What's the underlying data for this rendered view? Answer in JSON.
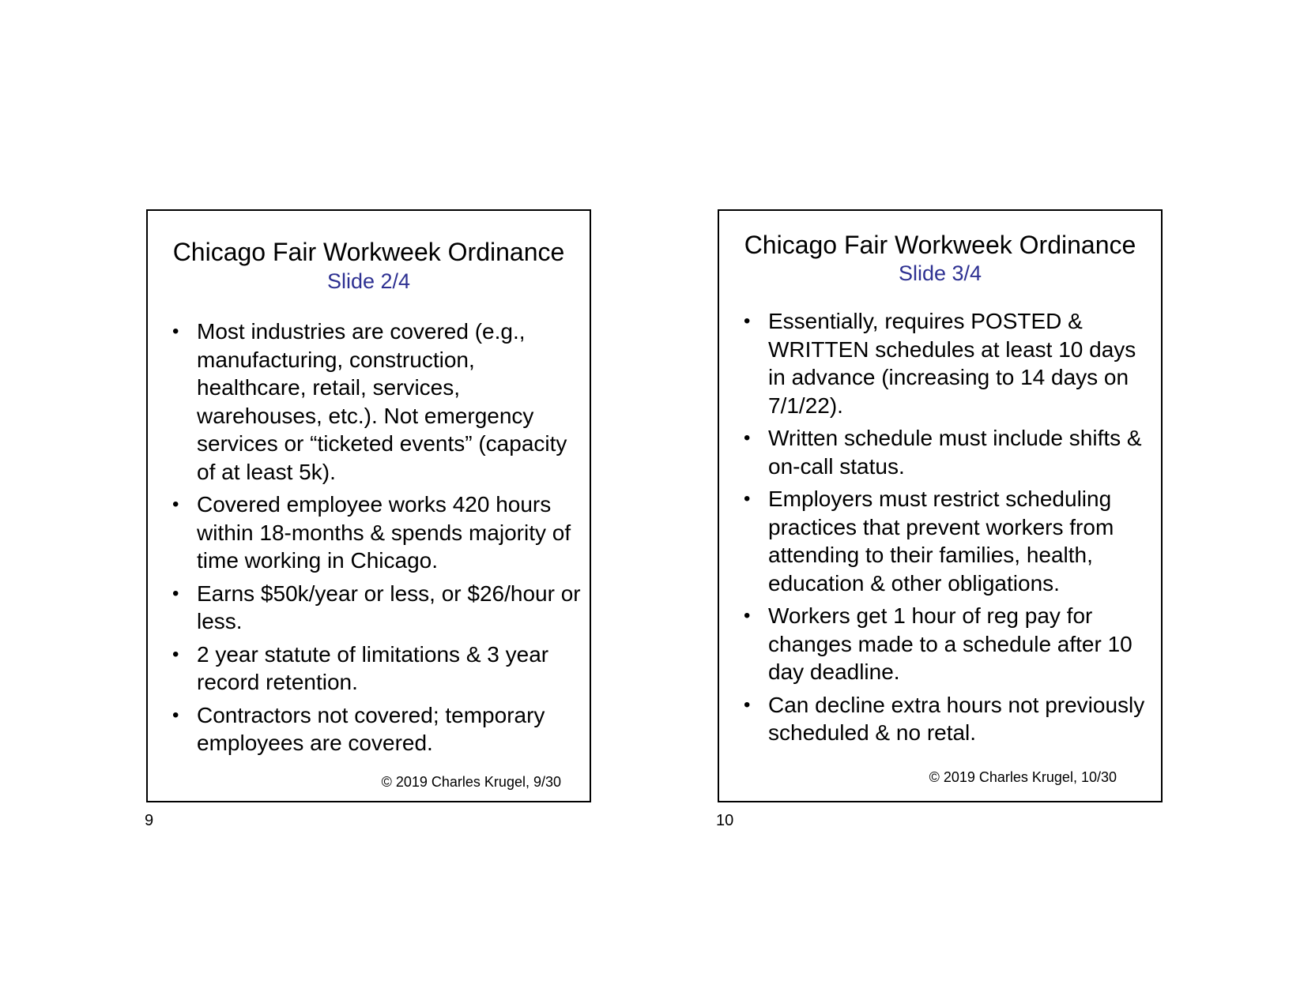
{
  "colors": {
    "subtitle": "#2e3192",
    "text": "#000000",
    "border": "#000000"
  },
  "slides": [
    {
      "title": "Chicago Fair Workweek Ordinance",
      "subtitle": "Slide 2/4",
      "bullets": [
        "Most industries are covered (e.g., manufacturing, construction, healthcare, retail, services, warehouses, etc.). Not emergency services or “ticketed events” (capacity of at least 5k).",
        "Covered employee works 420 hours within 18-months & spends majority of time working in Chicago.",
        "Earns $50k/year or less, or $26/hour or less.",
        "2 year statute of limitations & 3 year record retention.",
        "Contractors not covered; temporary employees are covered."
      ],
      "footer": "© 2019 Charles Krugel, 9/30",
      "page_number": "9"
    },
    {
      "title": "Chicago Fair Workweek Ordinance",
      "subtitle": "Slide 3/4",
      "bullets": [
        "Essentially, requires POSTED & WRITTEN schedules at least 10 days in advance (increasing to 14 days on 7/1/22).",
        "Written schedule must include shifts & on-call status.",
        "Employers must restrict scheduling practices that prevent workers from attending to their families, health, education & other obligations.",
        "Workers get 1 hour of reg pay for changes made to a schedule after 10 day deadline.",
        "Can decline extra hours not previously scheduled & no retal."
      ],
      "footer": "© 2019 Charles Krugel, 10/30",
      "page_number": "10"
    }
  ]
}
